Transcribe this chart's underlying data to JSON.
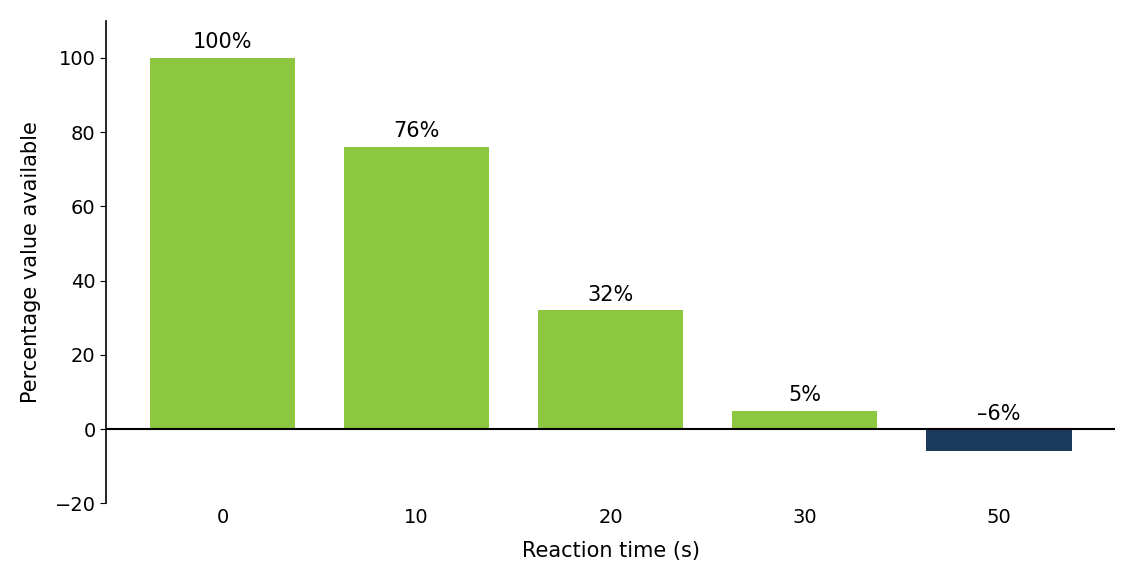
{
  "categories": [
    0,
    10,
    20,
    30,
    50
  ],
  "values": [
    100,
    76,
    32,
    5,
    -6
  ],
  "bar_colors": [
    "#8dc63f",
    "#8dc63f",
    "#8dc63f",
    "#8dc63f",
    "#1b3a5c"
  ],
  "labels": [
    "100%",
    "76%",
    "32%",
    "5%",
    "–6%"
  ],
  "xlabel": "Reaction time (s)",
  "ylabel": "Percentage value available",
  "ylim": [
    -20,
    110
  ],
  "yticks": [
    -20,
    0,
    20,
    40,
    60,
    80,
    100
  ],
  "bar_width": 0.75,
  "label_fontsize": 15,
  "axis_fontsize": 15,
  "tick_fontsize": 14,
  "background_color": "#ffffff"
}
